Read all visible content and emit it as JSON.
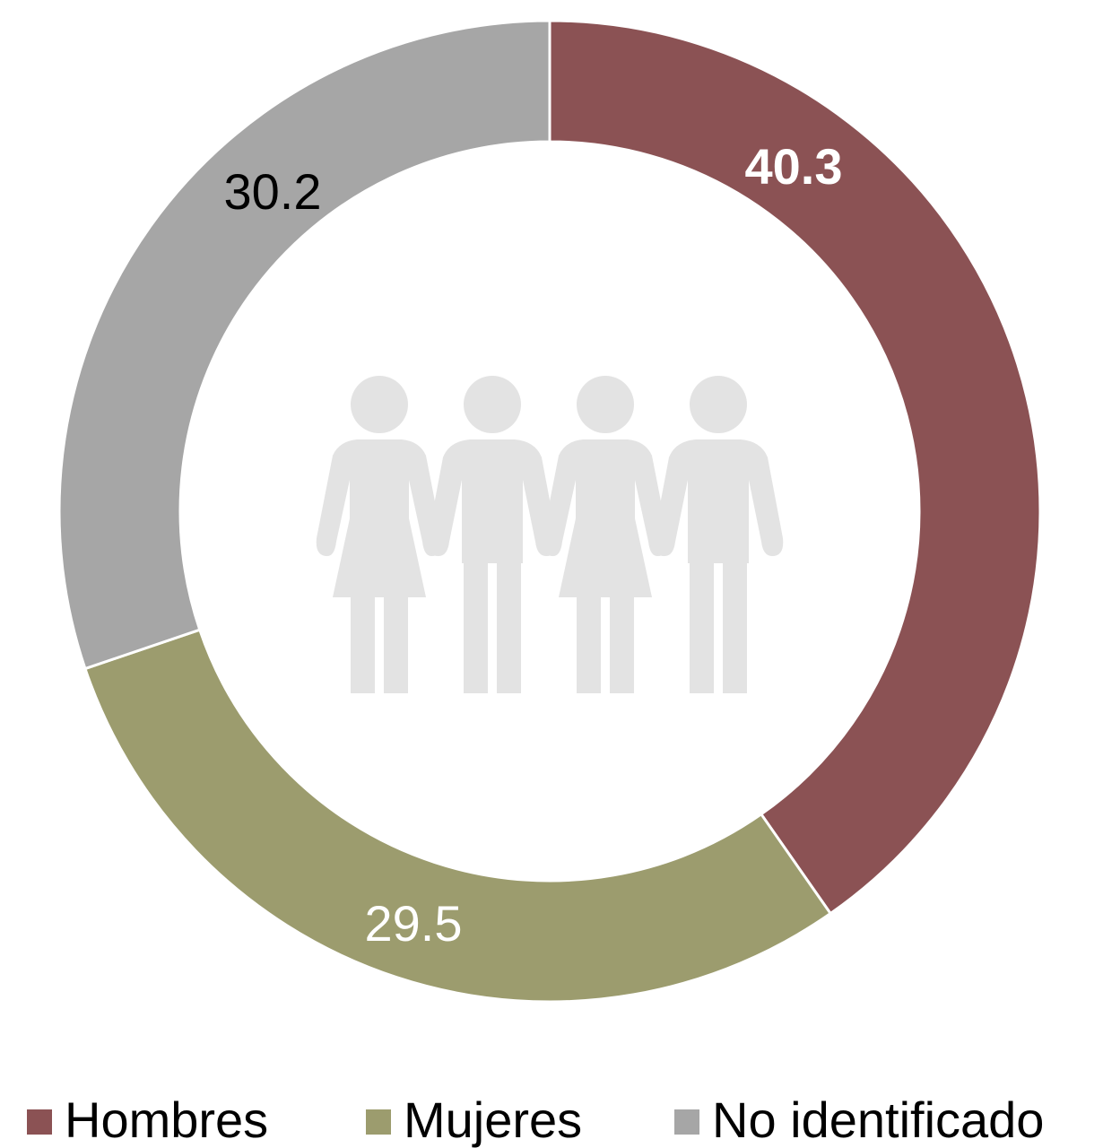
{
  "chart_data": {
    "type": "pie",
    "variant": "donut",
    "title": "",
    "legend_position": "bottom",
    "slices": [
      {
        "label": "Hombres",
        "value": 40.3,
        "color": "#8B5254",
        "label_color": "#ffffff",
        "label_bold": true
      },
      {
        "label": "Mujeres",
        "value": 29.5,
        "color": "#9C9C6E",
        "label_color": "#ffffff",
        "label_bold": false
      },
      {
        "label": "No identificado",
        "value": 30.2,
        "color": "#A6A6A6",
        "label_color": "#000000",
        "label_bold": false
      }
    ],
    "center_icon": "people-group-icon",
    "center_icon_color": "#E3E3E3"
  }
}
